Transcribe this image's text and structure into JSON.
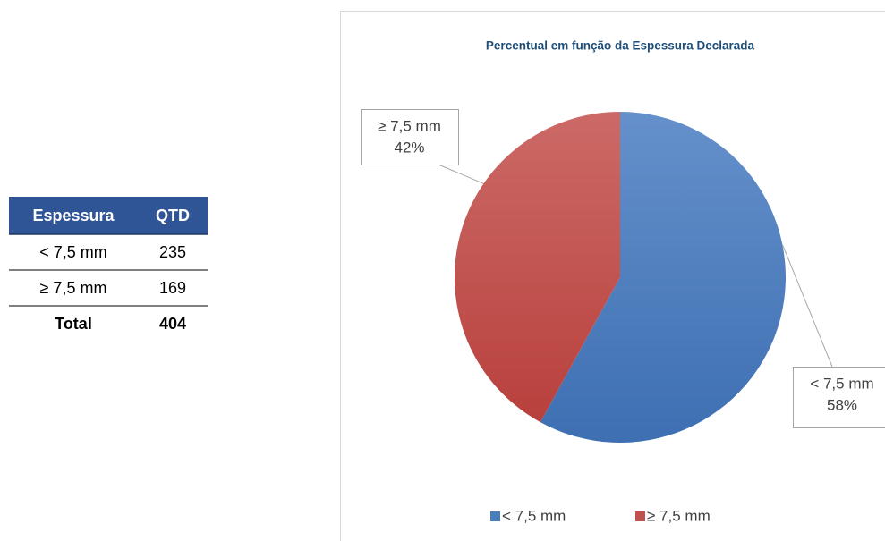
{
  "table": {
    "header": [
      "Espessura",
      "QTD"
    ],
    "rows": [
      [
        "< 7,5 mm",
        235
      ],
      [
        "≥ 7,5 mm",
        169
      ]
    ],
    "total": [
      "Total",
      404
    ]
  },
  "chart_data": {
    "type": "pie",
    "title": "Percentual em função da Espessura Declarada",
    "categories": [
      "< 7,5 mm",
      "≥ 7,5 mm"
    ],
    "values": [
      58,
      42
    ],
    "value_labels": [
      "58%",
      "42%"
    ],
    "colors": [
      "#4a7ebb",
      "#c0504d"
    ],
    "legend": "bottom"
  }
}
